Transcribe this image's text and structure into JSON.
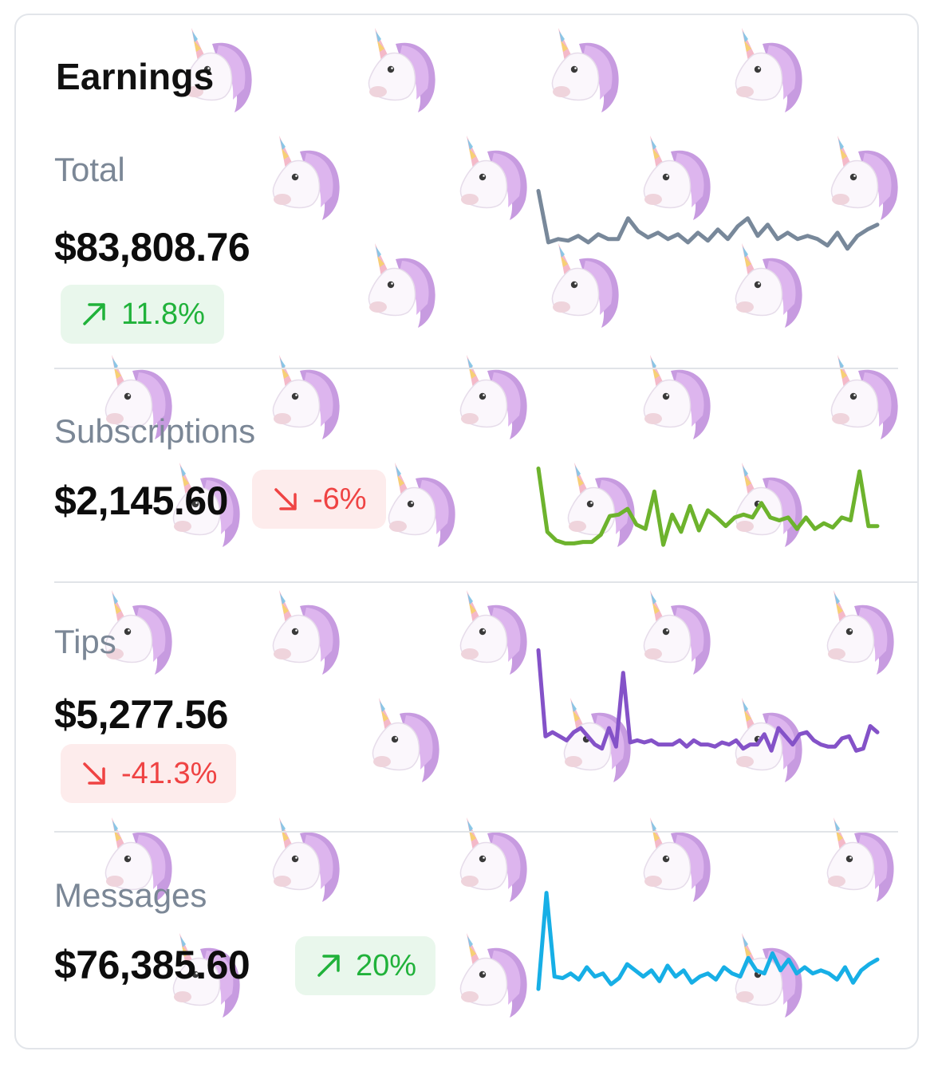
{
  "card": {
    "title": "Earnings"
  },
  "decoration": {
    "background_icon": "unicorn-icon"
  },
  "colors": {
    "total": "#78889a",
    "subscriptions": "#6db32d",
    "tips": "#8452c8",
    "messages": "#17afe6",
    "up_text": "#20b23a",
    "up_bg": "#e9f7ec",
    "down_text": "#ef4343",
    "down_bg": "#fdecec"
  },
  "metrics": [
    {
      "key": "total",
      "label": "Total",
      "amount": "$83,808.76",
      "change": "11.8%",
      "trend": "up",
      "trend_icon": "arrow-up-right-icon",
      "spark": [
        30,
        62,
        60,
        61,
        58,
        62,
        57,
        60,
        60,
        47,
        55,
        59,
        56,
        60,
        57,
        62,
        56,
        61,
        54,
        60,
        52,
        47,
        58,
        51,
        60,
        56,
        60,
        58,
        60,
        64,
        56,
        66,
        58,
        54,
        51
      ]
    },
    {
      "key": "subscriptions",
      "label": "Subscriptions",
      "amount": "$2,145.60",
      "change": "-6%",
      "trend": "down",
      "trend_icon": "arrow-down-right-icon",
      "spark": [
        18,
        62,
        68,
        70,
        70,
        69,
        69,
        64,
        51,
        50,
        46,
        57,
        60,
        34,
        71,
        50,
        62,
        44,
        61,
        47,
        52,
        58,
        52,
        50,
        52,
        42,
        52,
        54,
        52,
        60,
        52,
        60,
        56,
        59,
        52,
        54,
        20,
        58,
        58
      ]
    },
    {
      "key": "tips",
      "label": "Tips",
      "amount": "$5,277.56",
      "change": "-41.3%",
      "trend": "down",
      "trend_icon": "arrow-down-right-icon",
      "spark": [
        20,
        62,
        60,
        62,
        64,
        60,
        58,
        62,
        66,
        68,
        58,
        67,
        31,
        65,
        64,
        65,
        64,
        66,
        66,
        66,
        64,
        67,
        64,
        66,
        66,
        67,
        65,
        66,
        64,
        68,
        66,
        66,
        61,
        69,
        58,
        62,
        66,
        61,
        60,
        64,
        66,
        67,
        67,
        63,
        62,
        69,
        68,
        57,
        60
      ]
    },
    {
      "key": "messages",
      "label": "Messages",
      "amount": "$76,385.60",
      "change": "20%",
      "trend": "up",
      "trend_icon": "arrow-up-right-icon",
      "spark": [
        70,
        8,
        62,
        63,
        60,
        64,
        56,
        62,
        60,
        67,
        63,
        54,
        58,
        62,
        58,
        65,
        55,
        62,
        58,
        66,
        62,
        60,
        64,
        56,
        60,
        62,
        50,
        58,
        60,
        47,
        58,
        51,
        60,
        56,
        60,
        58,
        60,
        64,
        56,
        66,
        58,
        54,
        51
      ]
    }
  ]
}
